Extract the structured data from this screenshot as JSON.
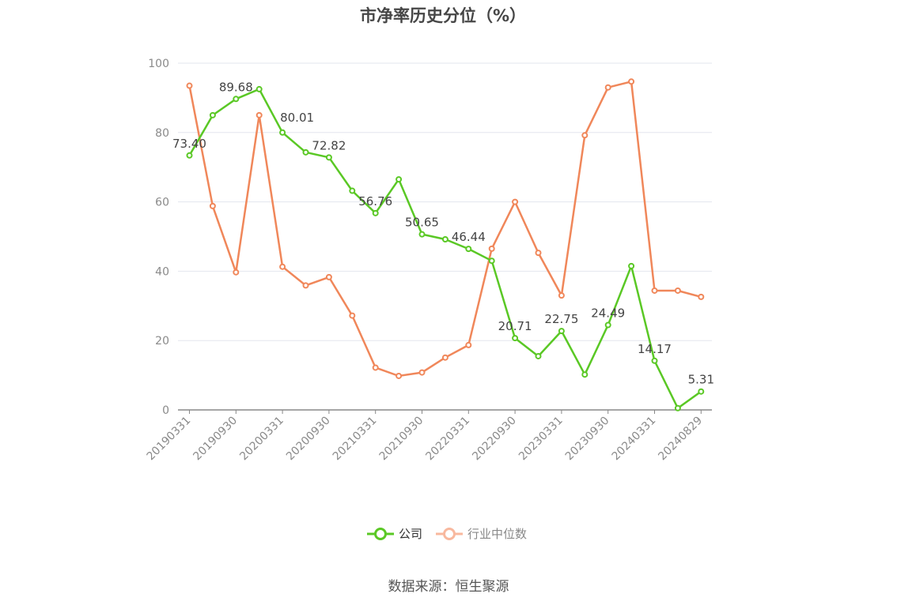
{
  "title": "市净率历史分位（%）",
  "source": "数据来源：恒生聚源",
  "chart_data": {
    "type": "line",
    "ylim": [
      0,
      100
    ],
    "y_ticks": [
      "0",
      "20",
      "40",
      "60",
      "80",
      "100"
    ],
    "grid": true,
    "legend_position": "bottom",
    "x": [
      "20190331",
      "20190630",
      "20190930",
      "20191231",
      "20200331",
      "20200630",
      "20200930",
      "20201231",
      "20210331",
      "20210630",
      "20210930",
      "20211231",
      "20220331",
      "20220630",
      "20220930",
      "20221231",
      "20230331",
      "20230630",
      "20230930",
      "20231231",
      "20240331",
      "20240630",
      "20240829"
    ],
    "x_tick_labels": [
      "20190331",
      "20190930",
      "20200331",
      "20200930",
      "20210331",
      "20210930",
      "20220331",
      "20220930",
      "20230331",
      "20230930",
      "20240331",
      "20240829"
    ],
    "series": [
      {
        "name": "公司",
        "color": "#5ac825",
        "values": [
          73.4,
          85.0,
          89.68,
          92.5,
          80.01,
          74.3,
          72.82,
          63.2,
          56.76,
          66.5,
          50.65,
          49.2,
          46.44,
          43.0,
          20.71,
          15.5,
          22.75,
          10.2,
          24.49,
          41.5,
          14.17,
          0.5,
          5.31
        ]
      },
      {
        "name": "行业中位数",
        "color": "#f0875a",
        "values": [
          93.5,
          58.8,
          39.7,
          85.0,
          41.3,
          35.9,
          38.3,
          27.2,
          12.2,
          9.8,
          10.8,
          15.1,
          18.7,
          46.5,
          60.0,
          45.3,
          33.0,
          79.2,
          93.0,
          94.7,
          34.4,
          34.4,
          32.6
        ]
      }
    ],
    "data_labels": [
      {
        "index": 0,
        "text": "73.40"
      },
      {
        "index": 2,
        "text": "89.68"
      },
      {
        "index": 4,
        "text": "80.01"
      },
      {
        "index": 6,
        "text": "72.82"
      },
      {
        "index": 8,
        "text": "56.76"
      },
      {
        "index": 10,
        "text": "50.65"
      },
      {
        "index": 12,
        "text": "46.44"
      },
      {
        "index": 14,
        "text": "20.71"
      },
      {
        "index": 16,
        "text": "22.75"
      },
      {
        "index": 18,
        "text": "24.49"
      },
      {
        "index": 20,
        "text": "14.17"
      },
      {
        "index": 22,
        "text": "5.31"
      }
    ]
  }
}
